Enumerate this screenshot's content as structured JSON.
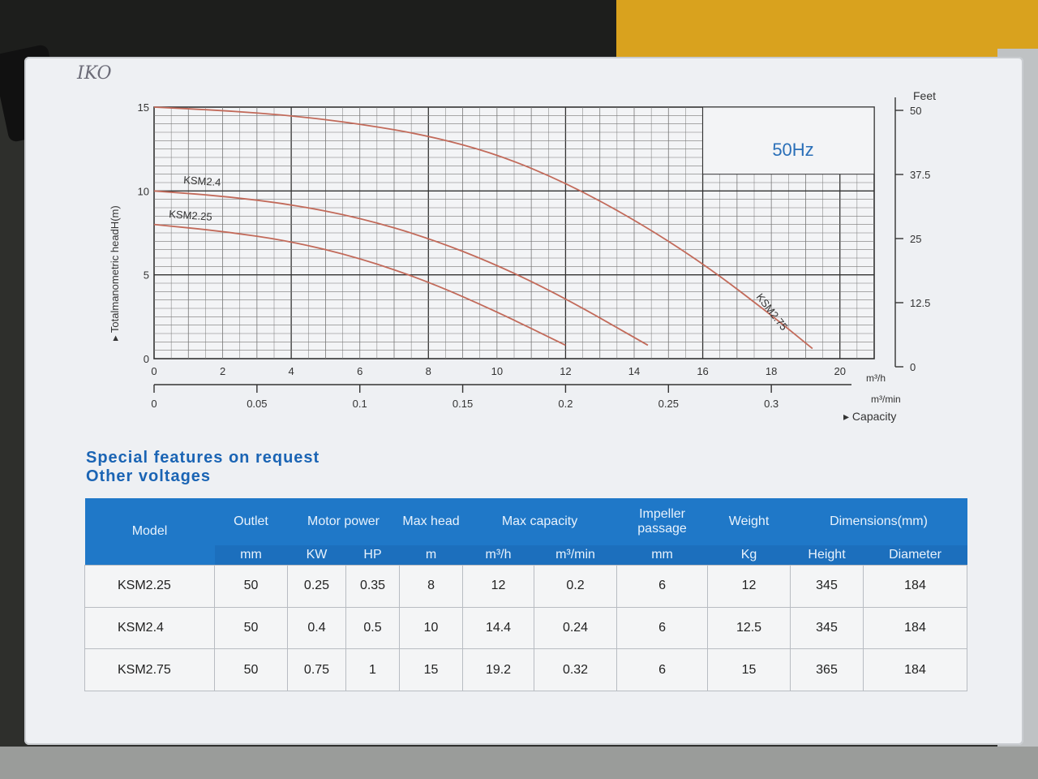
{
  "photo_mark": "IKO",
  "chart_data": {
    "type": "line",
    "frequency_label": "50Hz",
    "ylabel": "Totalmanometric headH(m)",
    "y_ticks": [
      "0",
      "5",
      "10",
      "15"
    ],
    "ylim": [
      0,
      15
    ],
    "feet_title": "Feet",
    "feet_ticks": [
      "0",
      "12.5",
      "25",
      "37.5",
      "50"
    ],
    "x_unit": "m³/h",
    "x_ticks": [
      "0",
      "2",
      "4",
      "6",
      "8",
      "10",
      "12",
      "14",
      "16",
      "18",
      "20"
    ],
    "xlim": [
      0,
      21
    ],
    "x2_unit": "m³/min",
    "x2_ticks": [
      "0",
      "0.05",
      "0.1",
      "0.15",
      "0.2",
      "0.25",
      "0.3"
    ],
    "capacity_label": "Capacity",
    "series": [
      {
        "name": "KSM2.25",
        "color": "#c26a5a",
        "x": [
          0,
          2,
          4,
          6,
          8,
          10,
          12
        ],
        "y": [
          8,
          7.6,
          7,
          6,
          4.6,
          2.8,
          0.8
        ]
      },
      {
        "name": "KSM2.4",
        "color": "#c26a5a",
        "x": [
          0,
          2,
          4,
          6,
          8,
          10,
          12,
          14.4
        ],
        "y": [
          10,
          9.7,
          9.2,
          8.4,
          7.2,
          5.6,
          3.6,
          0.8
        ]
      },
      {
        "name": "KSM2.75",
        "color": "#c26a5a",
        "x": [
          0,
          2,
          4,
          6,
          8,
          10,
          12,
          14,
          16,
          18,
          19.2
        ],
        "y": [
          15,
          14.8,
          14.5,
          14,
          13.3,
          12.2,
          10.5,
          8.3,
          5.7,
          2.6,
          0.6
        ]
      }
    ]
  },
  "features": {
    "line1": "Special features on request",
    "line2": "Other voltages"
  },
  "table": {
    "headers": {
      "model": "Model",
      "outlet": "Outlet",
      "motor_power": "Motor power",
      "max_head": "Max head",
      "max_capacity": "Max capacity",
      "impeller": "Impeller passage",
      "weight": "Weight",
      "dimensions": "Dimensions(mm)"
    },
    "units": {
      "outlet": "mm",
      "kw": "KW",
      "hp": "HP",
      "head": "m",
      "m3h": "m³/h",
      "m3min": "m³/min",
      "impeller": "mm",
      "weight": "Kg",
      "height": "Height",
      "diameter": "Diameter"
    },
    "rows": [
      {
        "model": "KSM2.25",
        "outlet": "50",
        "kw": "0.25",
        "hp": "0.35",
        "head": "8",
        "m3h": "12",
        "m3min": "0.2",
        "impeller": "6",
        "weight": "12",
        "height": "345",
        "diameter": "184"
      },
      {
        "model": "KSM2.4",
        "outlet": "50",
        "kw": "0.4",
        "hp": "0.5",
        "head": "10",
        "m3h": "14.4",
        "m3min": "0.24",
        "impeller": "6",
        "weight": "12.5",
        "height": "345",
        "diameter": "184"
      },
      {
        "model": "KSM2.75",
        "outlet": "50",
        "kw": "0.75",
        "hp": "1",
        "head": "15",
        "m3h": "19.2",
        "m3min": "0.32",
        "impeller": "6",
        "weight": "15",
        "height": "365",
        "diameter": "184"
      }
    ]
  }
}
